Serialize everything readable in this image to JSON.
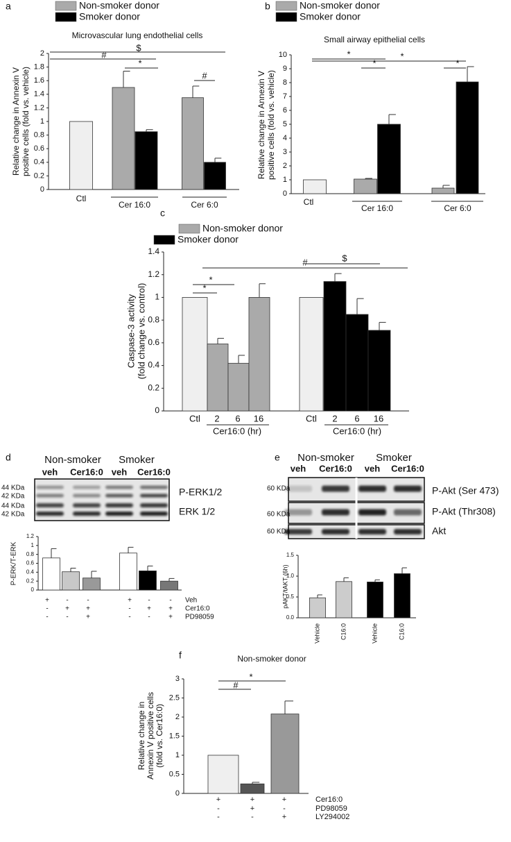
{
  "chart_data": [
    {
      "type": "bar",
      "panel": "a",
      "title": "Microvascular lung endothelial cells",
      "ylabel": [
        "Relative change in Annexin V",
        "positive cells (fold vs. vehicle)"
      ],
      "categories": [
        "Ctl",
        "Cer 16:0",
        "Cer 6:0"
      ],
      "series": [
        {
          "name": "Non-smoker donor",
          "color": "#aaaaaa",
          "colors": [
            "#efefef",
            "#aaaaaa",
            "#aaaaaa"
          ],
          "values": [
            1,
            1.5,
            1.35
          ],
          "errors": [
            null,
            0.24,
            0.17
          ]
        },
        {
          "name": "Smoker donor",
          "color": "#000000",
          "values": [
            null,
            0.85,
            0.4
          ],
          "errors": [
            null,
            0.03,
            0.06
          ]
        }
      ],
      "ylim": [
        0,
        2
      ],
      "yticks": [
        0,
        0.2,
        0.4,
        0.6,
        0.8,
        1,
        1.2,
        1.4,
        1.6,
        1.8,
        2
      ],
      "annotations": [
        "$",
        "#",
        "*",
        "#"
      ]
    },
    {
      "type": "bar",
      "panel": "b",
      "title": "Small airway epithelial cells",
      "ylabel": [
        "Relative change in Annexin V",
        "positive cells (fold vs. vehicle)"
      ],
      "categories": [
        "Ctl",
        "Cer 16:0",
        "Cer 6:0"
      ],
      "series": [
        {
          "name": "Non-smoker donor",
          "color": "#aaaaaa",
          "colors": [
            "#efefef",
            "#aaaaaa",
            "#aaaaaa"
          ],
          "values": [
            1,
            1.05,
            0.4
          ],
          "errors": [
            null,
            0.05,
            0.2
          ]
        },
        {
          "name": "Smoker donor",
          "color": "#000000",
          "values": [
            null,
            5,
            8.05
          ],
          "errors": [
            null,
            0.7,
            1.1
          ]
        }
      ],
      "ylim": [
        0,
        10
      ],
      "yticks": [
        0,
        1,
        2,
        3,
        4,
        5,
        6,
        7,
        8,
        9,
        10
      ],
      "annotations": [
        "*",
        "*",
        "*",
        "*"
      ]
    },
    {
      "type": "bar",
      "panel": "c",
      "ylabel": [
        "Caspase-3 activity",
        "(fold change vs. control)"
      ],
      "categories": [
        "Ctl",
        "2",
        "6",
        "16",
        "Ctl",
        "2",
        "6",
        "16"
      ],
      "group_labels": [
        "Cer16:0 (hr)",
        "Cer16:0 (hr)"
      ],
      "series": [
        {
          "name": "Non-smoker donor",
          "color": "#aaaaaa",
          "colors": [
            "#efefef",
            "#aaaaaa",
            "#aaaaaa",
            "#aaaaaa",
            null,
            null,
            null,
            null
          ],
          "values": [
            1,
            0.59,
            0.42,
            1,
            null,
            null,
            null,
            null
          ],
          "errors": [
            null,
            0.05,
            0.07,
            0.12,
            null,
            null,
            null,
            null
          ]
        },
        {
          "name": "Smoker donor",
          "color": "#000000",
          "colors": [
            null,
            null,
            null,
            null,
            "#efefef",
            "#000000",
            "#000000",
            "#000000"
          ],
          "values": [
            null,
            null,
            null,
            null,
            1,
            1.14,
            0.85,
            0.71
          ],
          "errors": [
            null,
            null,
            null,
            null,
            null,
            0.07,
            0.14,
            0.07
          ]
        }
      ],
      "ylim": [
        0,
        1.4
      ],
      "yticks": [
        0,
        0.2,
        0.4,
        0.6,
        0.8,
        1,
        1.2,
        1.4
      ],
      "annotations": [
        "*",
        "*",
        "#",
        "$"
      ]
    },
    {
      "type": "bar",
      "panel": "d",
      "ylabel": [
        "P-ERK/T-ERK"
      ],
      "series": [
        {
          "colors": [
            "#ffffff",
            "#c8c8c8",
            "#999999",
            "#ffffff",
            "#000000",
            "#777777"
          ],
          "values": [
            0.72,
            0.41,
            0.27,
            0.83,
            0.43,
            0.2
          ],
          "errors": [
            0.21,
            0.08,
            0.15,
            0.13,
            0.11,
            0.06
          ]
        }
      ],
      "ylim": [
        0,
        1.2
      ],
      "yticks": [
        0,
        0.2,
        0.4,
        0.6,
        0.8,
        1,
        1.2
      ],
      "treatments": [
        {
          "label": "Veh",
          "signs": [
            "+",
            "-",
            "-",
            "+",
            "-",
            "-"
          ]
        },
        {
          "label": "Cer16:0",
          "signs": [
            "-",
            "+",
            "+",
            "-",
            "+",
            "+"
          ]
        },
        {
          "label": "PD98059",
          "signs": [
            "-",
            "-",
            "+",
            "-",
            "-",
            "+"
          ]
        }
      ]
    },
    {
      "type": "bar",
      "panel": "e",
      "ylabel": [
        "pAKT/tAKT (6h)"
      ],
      "categories": [
        "Vehicle",
        "C16:0",
        "Vehicle",
        "C16:0"
      ],
      "series": [
        {
          "colors": [
            "#cccccc",
            "#cccccc",
            "#000000",
            "#000000"
          ],
          "values": [
            0.48,
            0.87,
            0.86,
            1.06
          ],
          "errors": [
            0.07,
            0.09,
            0.05,
            0.14
          ]
        }
      ],
      "ylim": [
        0,
        1.5
      ],
      "yticks": [
        {
          "value": 0,
          "label": "0.0"
        },
        {
          "value": 0.5,
          "label": "0.5"
        },
        {
          "value": 1,
          "label": "1.0"
        },
        {
          "value": 1.5,
          "label": "1.5"
        }
      ]
    },
    {
      "type": "bar",
      "panel": "f",
      "title": "Non-smoker donor",
      "ylabel": [
        "Relative change in",
        "Annexin V positive cells",
        "(fold vs. Cer16:0)"
      ],
      "series": [
        {
          "colors": [
            "#efefef",
            "#555555",
            "#999999"
          ],
          "values": [
            1,
            0.25,
            2.08
          ],
          "errors": [
            null,
            0.04,
            0.34
          ]
        }
      ],
      "ylim": [
        0,
        3
      ],
      "yticks": [
        0,
        0.5,
        1,
        1.5,
        2,
        2.5,
        3
      ],
      "annotations": [
        "#",
        "*"
      ],
      "treatments": [
        {
          "label": "Cer16:0",
          "signs": [
            "+",
            "+",
            "+"
          ]
        },
        {
          "label": "PD98059",
          "signs": [
            "-",
            "+",
            "-"
          ]
        },
        {
          "label": "LY294002",
          "signs": [
            "-",
            "-",
            "+"
          ]
        }
      ]
    }
  ],
  "western_blots": [
    {
      "groups": [
        "Non-smoker",
        "Smoker"
      ],
      "lanes": [
        "veh",
        "Cer16:0",
        "veh",
        "Cer16:0"
      ],
      "markers": [
        "44 KDa",
        "42 KDa",
        "44 KDa",
        "42 KDa"
      ],
      "rows": [
        "P-ERK1/2",
        "ERK 1/2"
      ]
    },
    {
      "groups": [
        "Non-smoker",
        "Smoker"
      ],
      "lanes": [
        "veh",
        "Cer16:0",
        "veh",
        "Cer16:0"
      ],
      "markers": [
        "60 KDa",
        "60 KDa",
        "60 KDa"
      ],
      "rows": [
        "P-Akt (Ser 473)",
        "P-Akt (Thr308)",
        "Akt"
      ]
    }
  ]
}
